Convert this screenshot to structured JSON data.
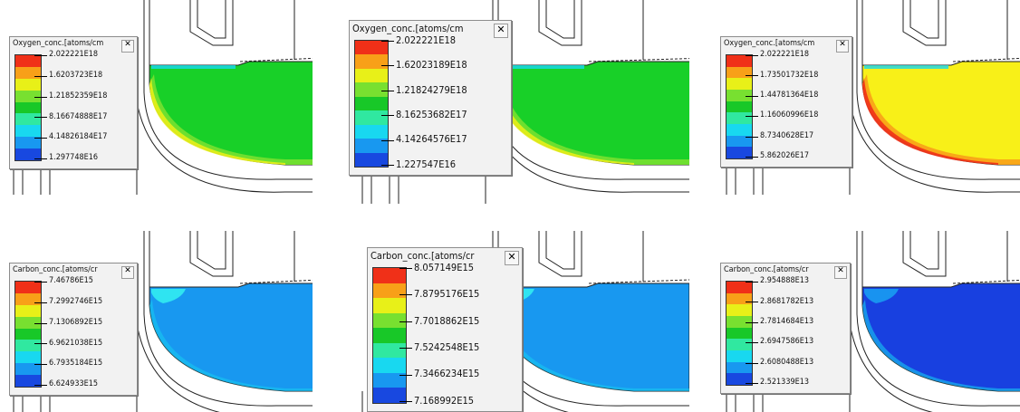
{
  "panels": [
    {
      "legend_title": "Oxygen_conc.[atoms/cm",
      "close_label": "✕",
      "values": [
        "2.022221E18",
        "1.6203723E18",
        "1.21852359E18",
        "8.16674888E17",
        "4.14826184E17",
        "1.297748E16"
      ],
      "bands": [
        "#f03018",
        "#f8a018",
        "#e8f018",
        "#78e030",
        "#18c828",
        "#30e8a0",
        "#18d8f0",
        "#1898f0",
        "#1848e0"
      ],
      "field_color": "#18d028"
    },
    {
      "legend_title": "Oxygen_conc.[atoms/cm",
      "close_label": "✕",
      "values": [
        "2.022221E18",
        "1.62023189E18",
        "1.21824279E18",
        "8.16253682E17",
        "4.14264576E17",
        "1.227547E16"
      ],
      "bands": [
        "#f03018",
        "#f8a018",
        "#e8f018",
        "#78e030",
        "#18c828",
        "#30e8a0",
        "#18d8f0",
        "#1898f0",
        "#1848e0"
      ],
      "field_color": "#18d028"
    },
    {
      "legend_title": "Oxygen_conc.[atoms/cm",
      "close_label": "✕",
      "values": [
        "2.022221E18",
        "1.73501732E18",
        "1.44781364E18",
        "1.16060996E18",
        "8.7340628E17",
        "5.862026E17"
      ],
      "bands": [
        "#f03018",
        "#f8a018",
        "#e8f018",
        "#78e030",
        "#18c828",
        "#30e8a0",
        "#18d8f0",
        "#1898f0",
        "#1848e0"
      ],
      "field_color": "#f8f018"
    },
    {
      "legend_title": "Carbon_conc.[atoms/cr",
      "close_label": "✕",
      "values": [
        "7.46786E15",
        "7.2992746E15",
        "7.1306892E15",
        "6.9621038E15",
        "6.7935184E15",
        "6.624933E15"
      ],
      "bands": [
        "#f03018",
        "#f8a018",
        "#e8f018",
        "#78e030",
        "#18c828",
        "#30e8a0",
        "#18d8f0",
        "#1898f0",
        "#1848e0"
      ],
      "field_color": "#1898f0"
    },
    {
      "legend_title": "Carbon_conc.[atoms/cr",
      "close_label": "✕",
      "values": [
        "8.057149E15",
        "7.8795176E15",
        "7.7018862E15",
        "7.5242548E15",
        "7.3466234E15",
        "7.168992E15"
      ],
      "bands": [
        "#f03018",
        "#f8a018",
        "#e8f018",
        "#78e030",
        "#18c828",
        "#30e8a0",
        "#18d8f0",
        "#1898f0",
        "#1848e0"
      ],
      "field_color": "#1898f0"
    },
    {
      "legend_title": "Carbon_conc.[atoms/cr",
      "close_label": "✕",
      "values": [
        "2.954888E13",
        "2.8681782E13",
        "2.7814684E13",
        "2.6947586E13",
        "2.6080488E13",
        "2.521339E13"
      ],
      "bands": [
        "#f03018",
        "#f8a018",
        "#e8f018",
        "#78e030",
        "#18c828",
        "#30e8a0",
        "#18d8f0",
        "#1898f0",
        "#1848e0"
      ],
      "field_color": "#1840e0"
    }
  ]
}
